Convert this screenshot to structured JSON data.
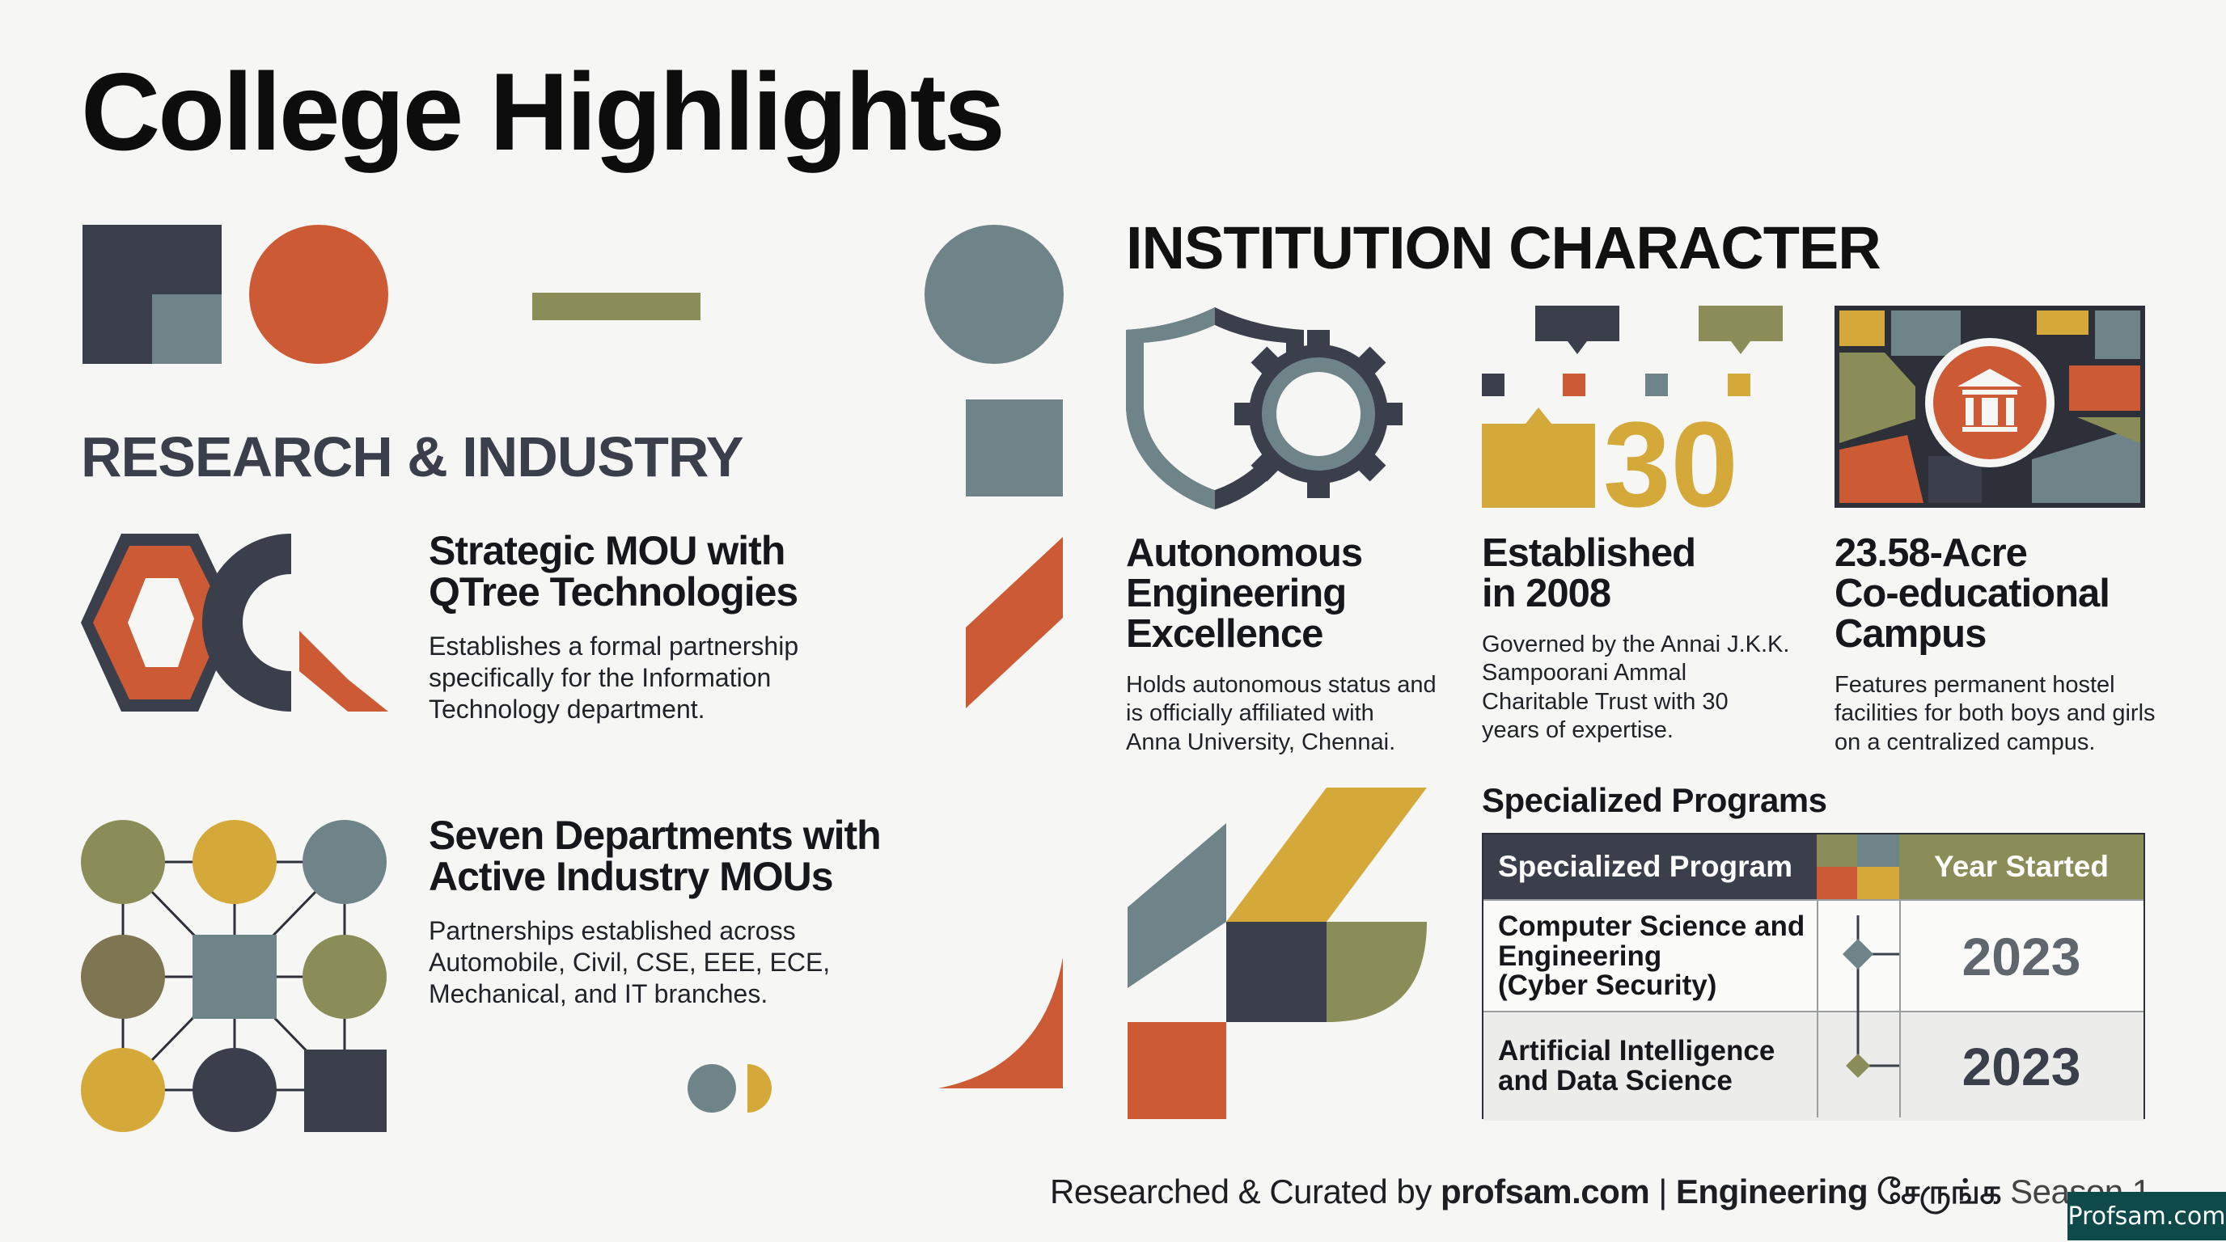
{
  "page": {
    "title": "College Highlights"
  },
  "research": {
    "heading": "RESEARCH & INDUSTRY",
    "cards": [
      {
        "title_lines": [
          "Strategic MOU with",
          "QTree Technologies"
        ],
        "desc_lines": [
          "Establishes a formal partnership",
          "specifically for the Information",
          "Technology department."
        ],
        "icon": "qtree-logo-icon"
      },
      {
        "title_lines": [
          "Seven Departments with",
          "Active Industry MOUs"
        ],
        "desc_lines": [
          "Partnerships established across",
          "Automobile, Civil, CSE, EEE, ECE,",
          "Mechanical, and IT branches."
        ],
        "icon": "network-nodes-icon"
      }
    ]
  },
  "institution": {
    "heading": "INSTITUTION CHARACTER",
    "cards": [
      {
        "title_lines": [
          "Autonomous",
          "Engineering",
          "Excellence"
        ],
        "desc_lines": [
          "Holds autonomous status and",
          "is officially affiliated with",
          "Anna University, Chennai."
        ],
        "icon": "shield-gear-icon"
      },
      {
        "title_lines": [
          "Established",
          "in 2008"
        ],
        "desc_lines": [
          "Governed by the Annai J.K.K.",
          "Sampoorani Ammal",
          "Charitable Trust with 30",
          "years of expertise."
        ],
        "icon": "thirty-years-icon",
        "icon_text": "30"
      },
      {
        "title_lines": [
          "23.58-Acre",
          "Co-educational",
          "Campus"
        ],
        "desc_lines": [
          "Features permanent hostel",
          "facilities for both boys and girls",
          "on a centralized campus."
        ],
        "icon": "campus-map-icon"
      }
    ]
  },
  "programs": {
    "heading": "Specialized Programs",
    "col_program": "Specialized Program",
    "col_year": "Year Started",
    "rows": [
      {
        "program_lines": [
          "Computer Science and",
          "Engineering",
          "(Cyber Security)"
        ],
        "year": "2023",
        "year_color": "#5f666e",
        "marker_color": "#6f8488"
      },
      {
        "program_lines": [
          "Artificial Intelligence",
          "and Data Science"
        ],
        "year": "2023",
        "year_color": "#3a3f4b",
        "marker_color": "#8a8d57"
      }
    ]
  },
  "footer": {
    "credit_prefix": "Researched & Curated by ",
    "credit_site": "profsam.com",
    "credit_sep": " | ",
    "credit_show": "Engineering சேருங்க",
    "credit_season": " Season 1",
    "badge": "Profsam.com"
  },
  "colors": {
    "navy": "#3a3f4b",
    "orange": "#cc5a35",
    "slate": "#6f8488",
    "olive": "#8a8d57",
    "mustard": "#d4a93a",
    "brown": "#7d7650"
  }
}
